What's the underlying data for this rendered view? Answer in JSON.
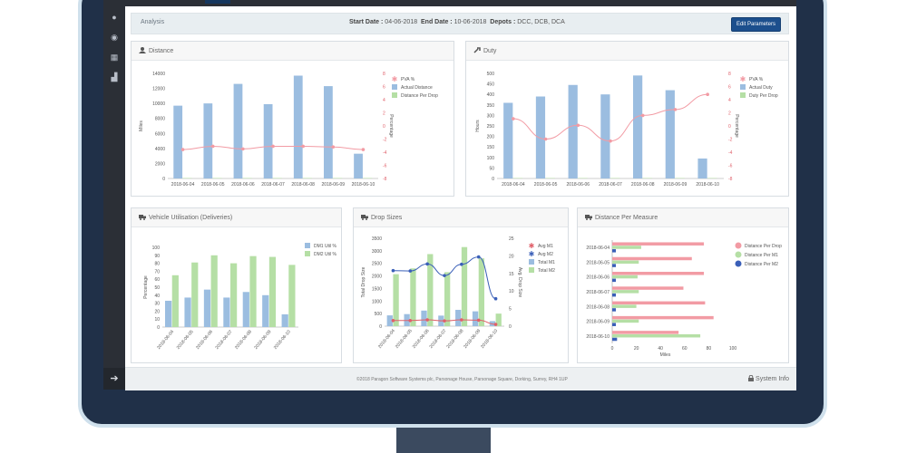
{
  "analysis": {
    "title": "Analysis",
    "start_label": "Start Date :",
    "start_value": "04-06-2018",
    "end_label": "End Date :",
    "end_value": "10-06-2018",
    "depots_label": "Depots :",
    "depots_value": "DCC, DCB, DCA",
    "edit_button": "Edit Parameters"
  },
  "panels": {
    "distance": "Distance",
    "duty": "Duty",
    "vehicle": "Vehicle Utilisation (Deliveries)",
    "drop_sizes": "Drop Sizes",
    "distance_measure": "Distance Per Measure"
  },
  "footer": {
    "copyright": "©2018 Paragon Software Systems plc, Parsonage House, Parsonage Square, Dorking, Surrey, RH4 1UP",
    "system_info": "System Info"
  },
  "colors": {
    "blue": "#9bbde0",
    "green": "#b5dfa5",
    "pink": "#f29ba4",
    "red": "#e0606a",
    "navy": "#3a5fb8",
    "accent": "#1c4f8d"
  },
  "chart_data": [
    {
      "type": "bar",
      "id": "distance",
      "categories": [
        "2018-06-04",
        "2018-06-05",
        "2018-06-06",
        "2018-06-07",
        "2018-06-08",
        "2018-06-09",
        "2018-06-10"
      ],
      "series": [
        {
          "name": "PVA %",
          "type": "line",
          "axis": "right",
          "values": [
            -3.6,
            -3.1,
            -3.5,
            -3.1,
            -3.1,
            -3.2,
            -3.6
          ]
        },
        {
          "name": "Actual Distance",
          "type": "bar",
          "values": [
            9700,
            10000,
            12600,
            9900,
            13700,
            12300,
            3300
          ]
        },
        {
          "name": "Distance Per Drop",
          "type": "bar",
          "values": [
            60,
            60,
            60,
            60,
            60,
            60,
            60
          ]
        }
      ],
      "ylabel": "Miles",
      "y2label": "Percentage",
      "ylim": [
        0,
        14000
      ],
      "y2lim": [
        -8,
        8
      ],
      "yticks": [
        0,
        2000,
        4000,
        6000,
        8000,
        10000,
        12000,
        14000
      ],
      "y2ticks": [
        -8,
        -6,
        -4,
        -2,
        0,
        2,
        4,
        6,
        8
      ]
    },
    {
      "type": "bar",
      "id": "duty",
      "categories": [
        "2018-06-04",
        "2018-06-05",
        "2018-06-06",
        "2018-06-07",
        "2018-06-08",
        "2018-06-09",
        "2018-06-10"
      ],
      "series": [
        {
          "name": "PVA %",
          "type": "line",
          "axis": "right",
          "values": [
            1.1,
            -2,
            0.1,
            -2.3,
            1.6,
            2.5,
            4.8
          ]
        },
        {
          "name": "Actual Duty",
          "type": "bar",
          "values": [
            360,
            390,
            445,
            400,
            490,
            420,
            95
          ]
        },
        {
          "name": "Duty Per Drop",
          "type": "bar",
          "values": [
            2,
            2,
            2,
            2,
            2,
            2,
            2
          ]
        }
      ],
      "ylabel": "Hours",
      "y2label": "Percentage",
      "ylim": [
        0,
        500
      ],
      "y2lim": [
        -8,
        8
      ],
      "yticks": [
        0,
        50,
        100,
        150,
        200,
        250,
        300,
        350,
        400,
        450,
        500
      ],
      "y2ticks": [
        -8,
        -6,
        -4,
        -2,
        0,
        2,
        4,
        6,
        8
      ]
    },
    {
      "type": "bar",
      "id": "vehicle",
      "categories": [
        "2018-06-04",
        "2018-06-05",
        "2018-06-06",
        "2018-06-07",
        "2018-06-08",
        "2018-06-09",
        "2018-06-10"
      ],
      "series": [
        {
          "name": "DM1 Util %",
          "values": [
            33,
            37,
            47,
            37,
            44,
            40,
            16
          ]
        },
        {
          "name": "DM2 Util %",
          "values": [
            65,
            81,
            90,
            80,
            89,
            88,
            78
          ]
        }
      ],
      "ylabel": "Percentage",
      "ylim": [
        0,
        100
      ],
      "yticks": [
        0,
        10,
        20,
        30,
        40,
        50,
        60,
        70,
        80,
        90,
        100
      ]
    },
    {
      "type": "bar",
      "id": "drop_sizes",
      "categories": [
        "2018-06-04",
        "2018-06-05",
        "2018-06-06",
        "2018-06-07",
        "2018-06-08",
        "2018-06-09",
        "2018-06-10"
      ],
      "series": [
        {
          "name": "Avg M1",
          "type": "line",
          "axis": "right",
          "values": [
            1.6,
            1.6,
            1.8,
            1.5,
            1.8,
            1.7,
            0.5
          ]
        },
        {
          "name": "Avg M2",
          "type": "line",
          "axis": "right",
          "values": [
            15.8,
            15.7,
            17.7,
            14.4,
            17.6,
            19.7,
            7.8
          ]
        },
        {
          "name": "Total M1",
          "type": "bar",
          "values": [
            430,
            480,
            620,
            420,
            650,
            590,
            200
          ]
        },
        {
          "name": "Total M2",
          "type": "bar",
          "values": [
            2070,
            2300,
            2870,
            2150,
            3150,
            2700,
            500
          ]
        }
      ],
      "ylabel": "Total Drop Size",
      "y2label": "Avg. Drop Size",
      "ylim": [
        0,
        3500
      ],
      "y2lim": [
        0,
        25
      ],
      "yticks": [
        0,
        500,
        1000,
        1500,
        2000,
        2500,
        3000,
        3500
      ],
      "y2ticks": [
        0,
        5,
        10,
        15,
        20,
        25
      ]
    },
    {
      "type": "bar",
      "id": "distance_measure",
      "orientation": "horizontal",
      "categories": [
        "2018-06-04",
        "2018-06-05",
        "2018-06-06",
        "2018-06-07",
        "2018-06-08",
        "2018-06-09",
        "2018-06-10"
      ],
      "series": [
        {
          "name": "Distance Per Drop",
          "values": [
            76,
            66,
            76,
            59,
            77,
            84,
            55
          ]
        },
        {
          "name": "Distance Per M1",
          "values": [
            24,
            22,
            21,
            22,
            20,
            22,
            73
          ]
        },
        {
          "name": "Distance Per M2",
          "values": [
            3,
            3,
            3,
            3,
            3,
            3,
            4
          ]
        }
      ],
      "xlabel": "Miles",
      "xlim": [
        0,
        100
      ],
      "xticks": [
        0,
        20,
        40,
        60,
        80,
        100
      ]
    }
  ]
}
